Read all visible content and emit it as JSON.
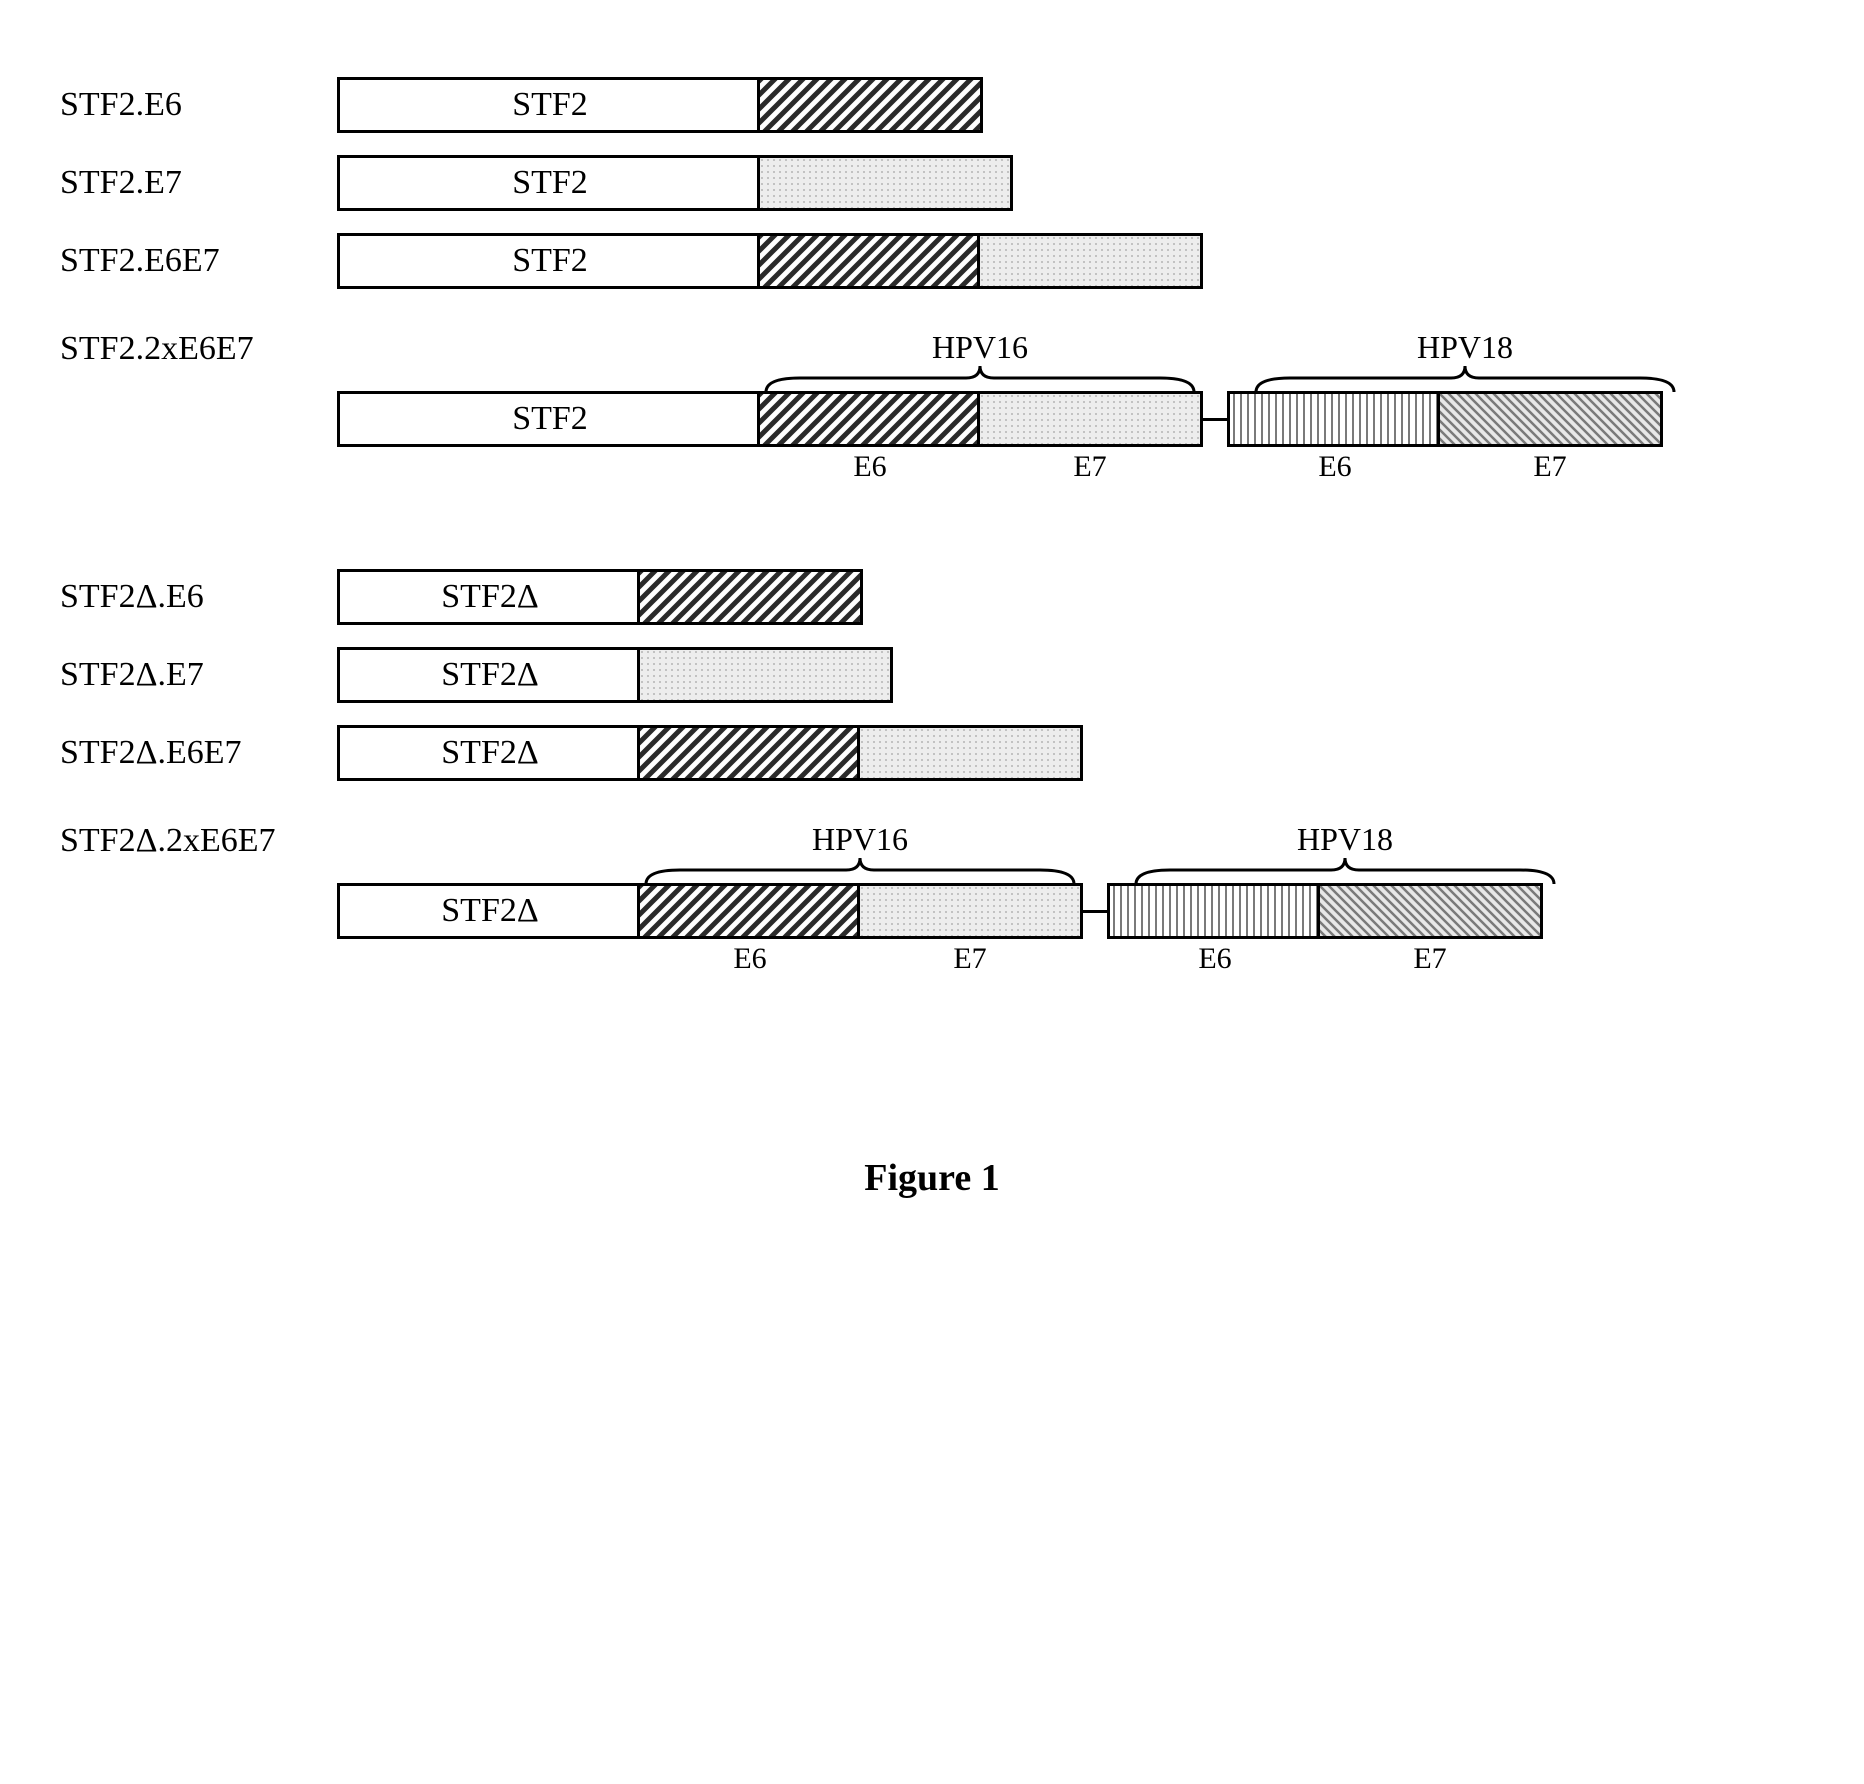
{
  "caption": "Figure 1",
  "patterns": {
    "plain": "#ffffff",
    "diag_fwd": {
      "type": "hatch",
      "angle": 45,
      "color": "#3a3a3a",
      "spacing": 10,
      "width": 5
    },
    "dots_light": {
      "type": "dots",
      "color": "#bfbfbf",
      "bg": "#f0f0f0"
    },
    "vertical": {
      "type": "hatch",
      "angle": 90,
      "color": "#808080",
      "spacing": 6,
      "width": 2
    },
    "diag_back": {
      "type": "hatch",
      "angle": -45,
      "color": "#808080",
      "spacing": 7,
      "width": 3
    }
  },
  "segment_widths": {
    "stf2": 420,
    "stf2d": 300,
    "e6_a": 220,
    "e7_a": 220,
    "e6_b": 210,
    "e7_b": 220,
    "e7_solo": 250,
    "connector": 30,
    "bracket_gap": 20
  },
  "labels": {
    "stf2": "STF2",
    "stf2d": "STF2Δ",
    "hpv16": "HPV16",
    "hpv18": "HPV18",
    "e6": "E6",
    "e7": "E7"
  },
  "constructs_group1": [
    {
      "name": "STF2.E6",
      "base": "stf2",
      "segs": [
        {
          "p": "diag_fwd",
          "w": "e6_a"
        }
      ]
    },
    {
      "name": "STF2.E7",
      "base": "stf2",
      "segs": [
        {
          "p": "dots_light",
          "w": "e7_solo"
        }
      ]
    },
    {
      "name": "STF2.E6E7",
      "base": "stf2",
      "segs": [
        {
          "p": "diag_fwd",
          "w": "e6_a"
        },
        {
          "p": "dots_light",
          "w": "e7_a"
        }
      ]
    },
    {
      "name": "STF2.2xE6E7",
      "base": "stf2",
      "brackets": true,
      "segs": [
        {
          "p": "diag_fwd",
          "w": "e6_a",
          "sub": "e6"
        },
        {
          "p": "dots_light",
          "w": "e7_a",
          "sub": "e7"
        },
        {
          "connector": true
        },
        {
          "p": "vertical",
          "w": "e6_b",
          "sub": "e6"
        },
        {
          "p": "diag_back",
          "w": "e7_b",
          "sub": "e7"
        }
      ]
    }
  ],
  "constructs_group2": [
    {
      "name": "STF2Δ.E6",
      "base": "stf2d",
      "segs": [
        {
          "p": "diag_fwd",
          "w": "e6_a"
        }
      ]
    },
    {
      "name": "STF2Δ.E7",
      "base": "stf2d",
      "segs": [
        {
          "p": "dots_light",
          "w": "e7_solo"
        }
      ]
    },
    {
      "name": "STF2Δ.E6E7",
      "base": "stf2d",
      "segs": [
        {
          "p": "diag_fwd",
          "w": "e6_a"
        },
        {
          "p": "dots_light",
          "w": "e7_a"
        }
      ]
    },
    {
      "name": "STF2Δ.2xE6E7",
      "base": "stf2d",
      "brackets": true,
      "segs": [
        {
          "p": "diag_fwd",
          "w": "e6_a",
          "sub": "e6"
        },
        {
          "p": "dots_light",
          "w": "e7_a",
          "sub": "e7"
        },
        {
          "connector": true
        },
        {
          "p": "vertical",
          "w": "e6_b",
          "sub": "e6"
        },
        {
          "p": "diag_back",
          "w": "e7_b",
          "sub": "e7"
        }
      ]
    }
  ]
}
